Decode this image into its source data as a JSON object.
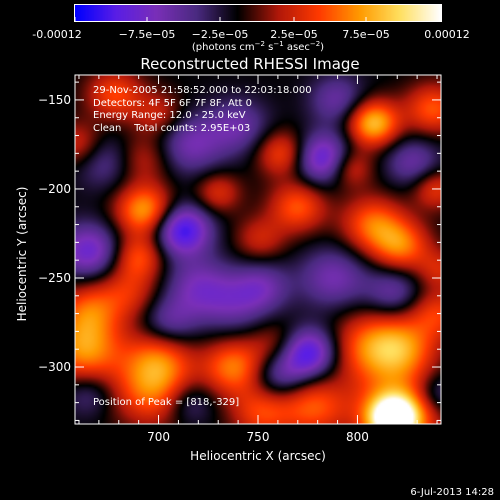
{
  "colorbar": {
    "tick_labels": [
      "-0.00012",
      "−7.5e−05",
      "−2.5e−05",
      "2.5e−05",
      "7.5e−05",
      "0.00012"
    ],
    "unit_label": "(photons cm",
    "unit_exp1": "−2",
    "unit_mid": " s",
    "unit_exp2": "−1",
    "unit_tail": " asec",
    "unit_exp3": "−2",
    "unit_close": ")"
  },
  "image": {
    "title": "Reconstructed RHESSI Image",
    "info_lines": [
      "29-Nov-2005 21:58:52.000 to 22:03:18.000",
      "Detectors: 4F 5F 6F 7F 8F, Att 0",
      "Energy Range: 12.0 - 25.0 keV",
      "Clean    Total counts: 2.95E+03"
    ],
    "peak_label": "Position of Peak = [818,-329]"
  },
  "footer": {
    "date": "6-Jul-2013 14:28"
  },
  "chart_data": {
    "type": "heatmap",
    "title": "Reconstructed RHESSI Image",
    "xlabel": "Heliocentric X (arcsec)",
    "ylabel": "Heliocentric Y (arcsec)",
    "xlim": [
      658,
      842
    ],
    "ylim": [
      -332,
      -136
    ],
    "x_ticks": [
      700,
      750,
      800
    ],
    "y_ticks": [
      -150,
      -200,
      -250,
      -300
    ],
    "colorbar_range": [
      -0.00012,
      0.00012
    ],
    "colorbar_ticks": [
      -0.00012,
      -7.5e-05,
      -2.5e-05,
      2.5e-05,
      7.5e-05,
      0.00012
    ],
    "colormap": [
      "#0000ff",
      "#5a1ee6",
      "#7a2fb8",
      "#4a2a80",
      "#000000",
      "#b0180a",
      "#ff3a00",
      "#ff9a00",
      "#ffe060",
      "#ffffff"
    ],
    "grid": false,
    "peak": [
      818,
      -329
    ],
    "blobs": [
      {
        "x": 818,
        "y": -329,
        "v": 1.0,
        "s": 8
      },
      {
        "x": 820,
        "y": -326,
        "v": 0.8,
        "s": 14
      },
      {
        "x": 807,
        "y": -289,
        "v": 0.55,
        "s": 14
      },
      {
        "x": 823,
        "y": -290,
        "v": 0.5,
        "s": 12
      },
      {
        "x": 840,
        "y": -270,
        "v": 0.4,
        "s": 10
      },
      {
        "x": 778,
        "y": -322,
        "v": 0.5,
        "s": 12
      },
      {
        "x": 752,
        "y": -325,
        "v": 0.45,
        "s": 11
      },
      {
        "x": 738,
        "y": -300,
        "v": 0.6,
        "s": 11
      },
      {
        "x": 697,
        "y": -313,
        "v": 0.55,
        "s": 14
      },
      {
        "x": 700,
        "y": -295,
        "v": 0.45,
        "s": 12
      },
      {
        "x": 663,
        "y": -290,
        "v": 0.65,
        "s": 13
      },
      {
        "x": 665,
        "y": -268,
        "v": 0.45,
        "s": 11
      },
      {
        "x": 685,
        "y": -258,
        "v": 0.35,
        "s": 11
      },
      {
        "x": 693,
        "y": -212,
        "v": 0.7,
        "s": 10
      },
      {
        "x": 690,
        "y": -238,
        "v": 0.45,
        "s": 9
      },
      {
        "x": 692,
        "y": -183,
        "v": 0.3,
        "s": 10
      },
      {
        "x": 678,
        "y": -147,
        "v": 0.45,
        "s": 10
      },
      {
        "x": 660,
        "y": -175,
        "v": 0.35,
        "s": 9
      },
      {
        "x": 700,
        "y": -158,
        "v": 0.3,
        "s": 9
      },
      {
        "x": 730,
        "y": -202,
        "v": 0.35,
        "s": 8
      },
      {
        "x": 762,
        "y": -180,
        "v": 0.45,
        "s": 9
      },
      {
        "x": 770,
        "y": -210,
        "v": 0.5,
        "s": 10
      },
      {
        "x": 751,
        "y": -228,
        "v": 0.3,
        "s": 9
      },
      {
        "x": 760,
        "y": -288,
        "v": 0.3,
        "s": 10
      },
      {
        "x": 838,
        "y": -155,
        "v": 0.5,
        "s": 10
      },
      {
        "x": 808,
        "y": -163,
        "v": 0.8,
        "s": 9
      },
      {
        "x": 796,
        "y": -188,
        "v": 0.4,
        "s": 8
      },
      {
        "x": 808,
        "y": -220,
        "v": 0.55,
        "s": 11
      },
      {
        "x": 822,
        "y": -232,
        "v": 0.55,
        "s": 10
      },
      {
        "x": 839,
        "y": -200,
        "v": 0.4,
        "s": 8
      },
      {
        "x": 841,
        "y": -245,
        "v": 0.3,
        "s": 8
      },
      {
        "x": 673,
        "y": -184,
        "v": -0.3,
        "s": 11
      },
      {
        "x": 665,
        "y": -235,
        "v": -0.55,
        "s": 11
      },
      {
        "x": 712,
        "y": -223,
        "v": -0.75,
        "s": 10
      },
      {
        "x": 716,
        "y": -175,
        "v": -0.4,
        "s": 12
      },
      {
        "x": 720,
        "y": -255,
        "v": -0.4,
        "s": 12
      },
      {
        "x": 738,
        "y": -265,
        "v": -0.3,
        "s": 12
      },
      {
        "x": 705,
        "y": -275,
        "v": -0.35,
        "s": 10
      },
      {
        "x": 715,
        "y": -320,
        "v": -0.3,
        "s": 9
      },
      {
        "x": 740,
        "y": -165,
        "v": -0.35,
        "s": 11
      },
      {
        "x": 783,
        "y": -183,
        "v": -0.65,
        "s": 10
      },
      {
        "x": 788,
        "y": -250,
        "v": -0.4,
        "s": 12
      },
      {
        "x": 775,
        "y": -292,
        "v": -0.75,
        "s": 10
      },
      {
        "x": 760,
        "y": -305,
        "v": -0.4,
        "s": 10
      },
      {
        "x": 752,
        "y": -255,
        "v": -0.35,
        "s": 10
      },
      {
        "x": 828,
        "y": -185,
        "v": -0.35,
        "s": 10
      },
      {
        "x": 818,
        "y": -258,
        "v": -0.35,
        "s": 10
      },
      {
        "x": 840,
        "y": -315,
        "v": -0.3,
        "s": 8
      },
      {
        "x": 790,
        "y": -150,
        "v": -0.35,
        "s": 10
      },
      {
        "x": 665,
        "y": -315,
        "v": -0.25,
        "s": 9
      }
    ]
  }
}
